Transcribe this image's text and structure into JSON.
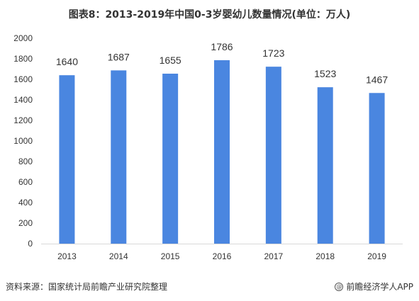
{
  "chart_data": {
    "type": "bar",
    "title": "图表8：2013-2019年中国0-3岁婴幼儿数量情况(单位：万人)",
    "categories": [
      "2013",
      "2014",
      "2015",
      "2016",
      "2017",
      "2018",
      "2019"
    ],
    "values": [
      1640,
      1687,
      1655,
      1786,
      1723,
      1523,
      1467
    ],
    "data_labels": [
      "1640",
      "1687",
      "1655",
      "1786",
      "1723",
      "1523",
      "1467"
    ],
    "yticks": [
      "0",
      "200",
      "400",
      "600",
      "800",
      "1000",
      "1200",
      "1400",
      "1600",
      "1800",
      "2000"
    ],
    "ylim": [
      0,
      2000
    ],
    "xlabel": "",
    "ylabel": "",
    "grid": false,
    "legend": "none",
    "bar_color": "#4a86e0"
  },
  "footer": {
    "source": "资料来源：国家统计局前瞻产业研究院整理",
    "brand": "前瞻经济学人APP",
    "brand_icon": "at-icon"
  }
}
